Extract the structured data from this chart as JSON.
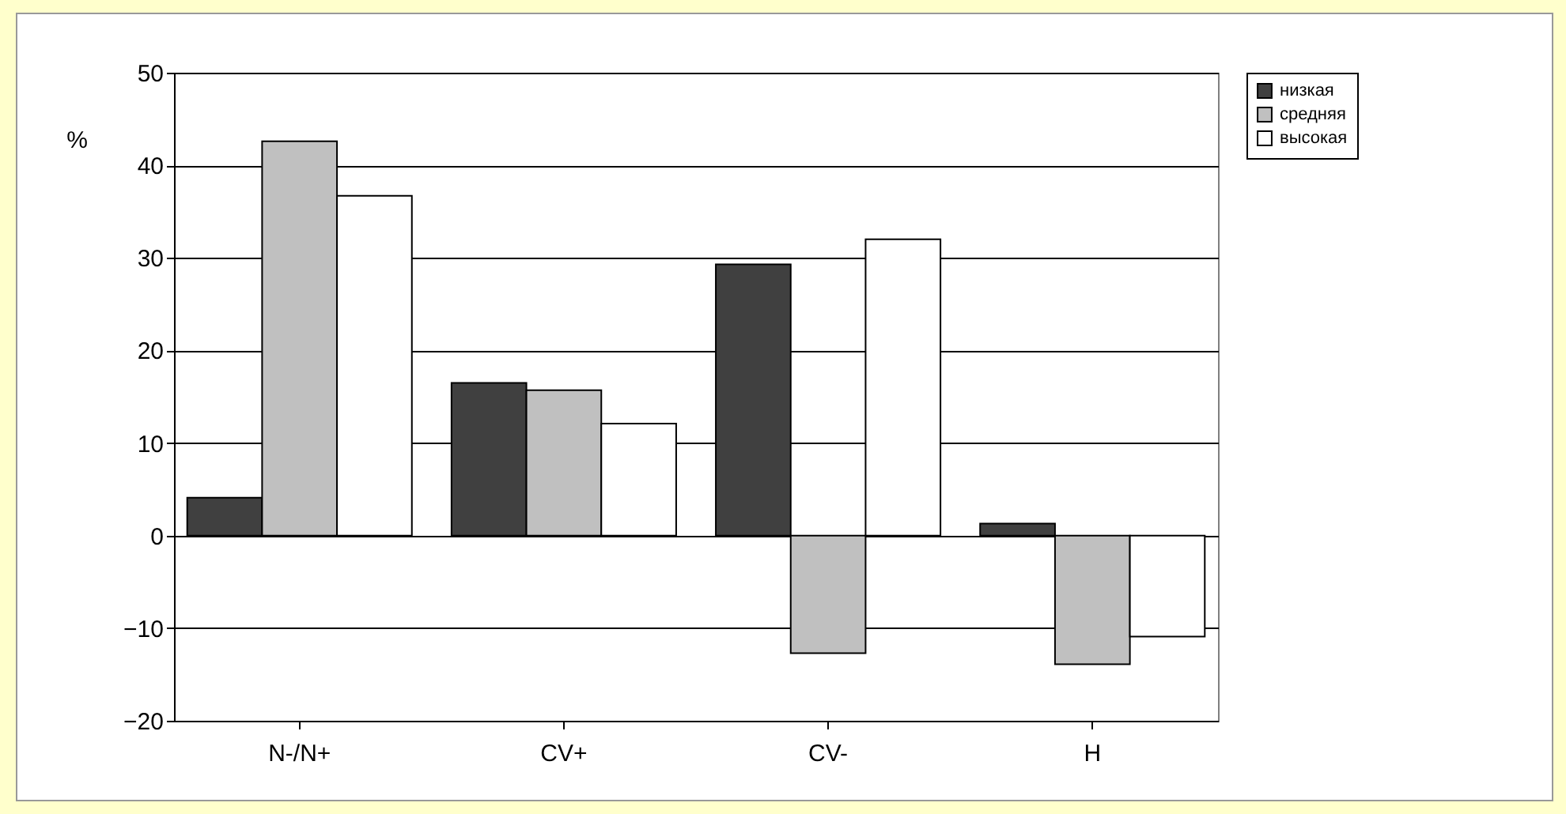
{
  "chart_data": {
    "type": "bar",
    "ylabel": "%",
    "categories": [
      "N-/N+",
      "CV+",
      "CV-",
      "H"
    ],
    "series": [
      {
        "name": "низкая",
        "color": "#404040",
        "values": [
          4.1,
          16.5,
          29.3,
          1.3
        ]
      },
      {
        "name": "средняя",
        "color": "#c0c0c0",
        "values": [
          42.6,
          15.7,
          -12.7,
          -13.9
        ]
      },
      {
        "name": "высокая",
        "color": "#ffffff",
        "values": [
          36.7,
          12.1,
          32.0,
          -10.9
        ]
      }
    ],
    "ylim": [
      -20,
      50
    ],
    "yticks": [
      -20,
      -10,
      0,
      10,
      20,
      30,
      40,
      50
    ],
    "grid": "y",
    "legend": "right"
  }
}
